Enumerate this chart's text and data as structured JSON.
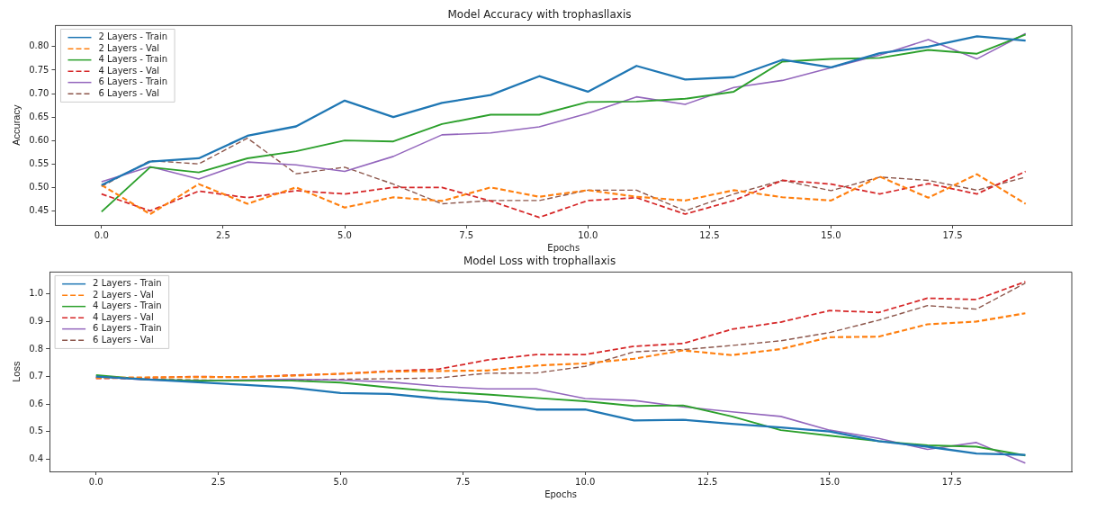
{
  "chart_data": [
    {
      "type": "line",
      "title": "Model Accuracy with trophasllaxis",
      "xlabel": "Epochs",
      "ylabel": "Accuracy",
      "x": [
        0,
        1,
        2,
        3,
        4,
        5,
        6,
        7,
        8,
        9,
        10,
        11,
        12,
        13,
        14,
        15,
        16,
        17,
        18,
        19
      ],
      "xlim": [
        -0.95,
        19.95
      ],
      "xticks": [
        {
          "value": 0,
          "label": "0.0"
        },
        {
          "value": 2.5,
          "label": "2.5"
        },
        {
          "value": 5,
          "label": "5.0"
        },
        {
          "value": 7.5,
          "label": "7.5"
        },
        {
          "value": 10,
          "label": "10.0"
        },
        {
          "value": 12.5,
          "label": "12.5"
        },
        {
          "value": 15,
          "label": "15.0"
        },
        {
          "value": 17.5,
          "label": "17.5"
        }
      ],
      "ylim": [
        0.42,
        0.845
      ],
      "yticks": [
        {
          "value": 0.45,
          "label": "0.45"
        },
        {
          "value": 0.5,
          "label": "0.50"
        },
        {
          "value": 0.55,
          "label": "0.55"
        },
        {
          "value": 0.6,
          "label": "0.60"
        },
        {
          "value": 0.65,
          "label": "0.65"
        },
        {
          "value": 0.7,
          "label": "0.70"
        },
        {
          "value": 0.75,
          "label": "0.75"
        },
        {
          "value": 0.8,
          "label": "0.80"
        }
      ],
      "grid": false,
      "legend": "top left",
      "marker": "none",
      "series": [
        {
          "name": "2 Layers - Train",
          "color": "#1f77b4",
          "line_style": "solid",
          "values": [
            0.505,
            0.555,
            0.562,
            0.61,
            0.63,
            0.685,
            0.65,
            0.68,
            0.697,
            0.737,
            0.704,
            0.759,
            0.73,
            0.735,
            0.772,
            0.756,
            0.786,
            0.8,
            0.822,
            0.813
          ]
        },
        {
          "name": "2 Layers - Val",
          "color": "#ff7f0e",
          "line_style": "dashed",
          "values": [
            0.505,
            0.443,
            0.507,
            0.465,
            0.5,
            0.457,
            0.479,
            0.471,
            0.5,
            0.48,
            0.494,
            0.48,
            0.472,
            0.494,
            0.479,
            0.472,
            0.523,
            0.478,
            0.528,
            0.465
          ]
        },
        {
          "name": "4 Layers - Train",
          "color": "#2ca02c",
          "line_style": "solid",
          "values": [
            0.448,
            0.543,
            0.532,
            0.562,
            0.577,
            0.6,
            0.598,
            0.635,
            0.655,
            0.655,
            0.682,
            0.683,
            0.689,
            0.704,
            0.768,
            0.774,
            0.776,
            0.793,
            0.785,
            0.826
          ]
        },
        {
          "name": "4 Layers - Val",
          "color": "#d62728",
          "line_style": "dashed",
          "values": [
            0.486,
            0.45,
            0.492,
            0.478,
            0.493,
            0.486,
            0.5,
            0.5,
            0.471,
            0.436,
            0.472,
            0.478,
            0.443,
            0.472,
            0.515,
            0.507,
            0.486,
            0.508,
            0.486,
            0.534
          ]
        },
        {
          "name": "6 Layers - Train",
          "color": "#9467bd",
          "line_style": "solid",
          "values": [
            0.512,
            0.544,
            0.518,
            0.554,
            0.548,
            0.534,
            0.566,
            0.612,
            0.616,
            0.629,
            0.658,
            0.693,
            0.677,
            0.713,
            0.728,
            0.755,
            0.782,
            0.815,
            0.774,
            0.828
          ]
        },
        {
          "name": "6 Layers - Val",
          "color": "#8c564b",
          "line_style": "dashed",
          "values": [
            0.502,
            0.557,
            0.55,
            0.605,
            0.529,
            0.543,
            0.507,
            0.465,
            0.472,
            0.472,
            0.494,
            0.494,
            0.45,
            0.486,
            0.515,
            0.493,
            0.522,
            0.515,
            0.494,
            0.522
          ]
        }
      ]
    },
    {
      "type": "line",
      "title": "Model Loss with trophallaxis",
      "xlabel": "Epochs",
      "ylabel": "Loss",
      "x": [
        0,
        1,
        2,
        3,
        4,
        5,
        6,
        7,
        8,
        9,
        10,
        11,
        12,
        13,
        14,
        15,
        16,
        17,
        18,
        19
      ],
      "xlim": [
        -0.95,
        19.95
      ],
      "xticks": [
        {
          "value": 0,
          "label": "0.0"
        },
        {
          "value": 2.5,
          "label": "2.5"
        },
        {
          "value": 5,
          "label": "5.0"
        },
        {
          "value": 7.5,
          "label": "7.5"
        },
        {
          "value": 10,
          "label": "10.0"
        },
        {
          "value": 12.5,
          "label": "12.5"
        },
        {
          "value": 15,
          "label": "15.0"
        },
        {
          "value": 17.5,
          "label": "17.5"
        }
      ],
      "ylim": [
        0.355,
        1.08
      ],
      "yticks": [
        {
          "value": 0.4,
          "label": "0.4"
        },
        {
          "value": 0.5,
          "label": "0.5"
        },
        {
          "value": 0.6,
          "label": "0.6"
        },
        {
          "value": 0.7,
          "label": "0.7"
        },
        {
          "value": 0.8,
          "label": "0.8"
        },
        {
          "value": 0.9,
          "label": "0.9"
        },
        {
          "value": 1,
          "label": "1.0"
        }
      ],
      "grid": false,
      "legend": "top left",
      "marker": "none",
      "series": [
        {
          "name": "2 Layers - Train",
          "color": "#1f77b4",
          "line_style": "solid",
          "values": [
            0.7,
            0.69,
            0.68,
            0.67,
            0.66,
            0.64,
            0.637,
            0.62,
            0.607,
            0.58,
            0.58,
            0.54,
            0.543,
            0.528,
            0.515,
            0.5,
            0.465,
            0.445,
            0.42,
            0.415
          ]
        },
        {
          "name": "2 Layers - Val",
          "color": "#ff7f0e",
          "line_style": "dashed",
          "values": [
            0.695,
            0.697,
            0.698,
            0.698,
            0.703,
            0.71,
            0.718,
            0.72,
            0.722,
            0.74,
            0.748,
            0.765,
            0.795,
            0.778,
            0.8,
            0.843,
            0.845,
            0.89,
            0.9,
            0.93
          ]
        },
        {
          "name": "4 Layers - Train",
          "color": "#2ca02c",
          "line_style": "solid",
          "values": [
            0.705,
            0.69,
            0.685,
            0.685,
            0.685,
            0.678,
            0.66,
            0.645,
            0.635,
            0.622,
            0.61,
            0.593,
            0.595,
            0.555,
            0.505,
            0.485,
            0.465,
            0.45,
            0.445,
            0.413
          ]
        },
        {
          "name": "4 Layers - Val",
          "color": "#d62728",
          "line_style": "dashed",
          "values": [
            0.693,
            0.695,
            0.7,
            0.698,
            0.705,
            0.71,
            0.72,
            0.727,
            0.76,
            0.78,
            0.78,
            0.81,
            0.82,
            0.872,
            0.898,
            0.94,
            0.933,
            0.985,
            0.98,
            1.045
          ]
        },
        {
          "name": "6 Layers - Train",
          "color": "#9467bd",
          "line_style": "solid",
          "values": [
            0.7,
            0.688,
            0.685,
            0.688,
            0.69,
            0.687,
            0.68,
            0.665,
            0.655,
            0.655,
            0.62,
            0.613,
            0.59,
            0.572,
            0.555,
            0.505,
            0.475,
            0.435,
            0.46,
            0.385
          ]
        },
        {
          "name": "6 Layers - Val",
          "color": "#8c564b",
          "line_style": "dashed",
          "values": [
            0.697,
            0.69,
            0.688,
            0.685,
            0.687,
            0.69,
            0.692,
            0.695,
            0.712,
            0.713,
            0.737,
            0.79,
            0.798,
            0.813,
            0.83,
            0.86,
            0.905,
            0.958,
            0.945,
            1.04
          ]
        }
      ]
    }
  ]
}
